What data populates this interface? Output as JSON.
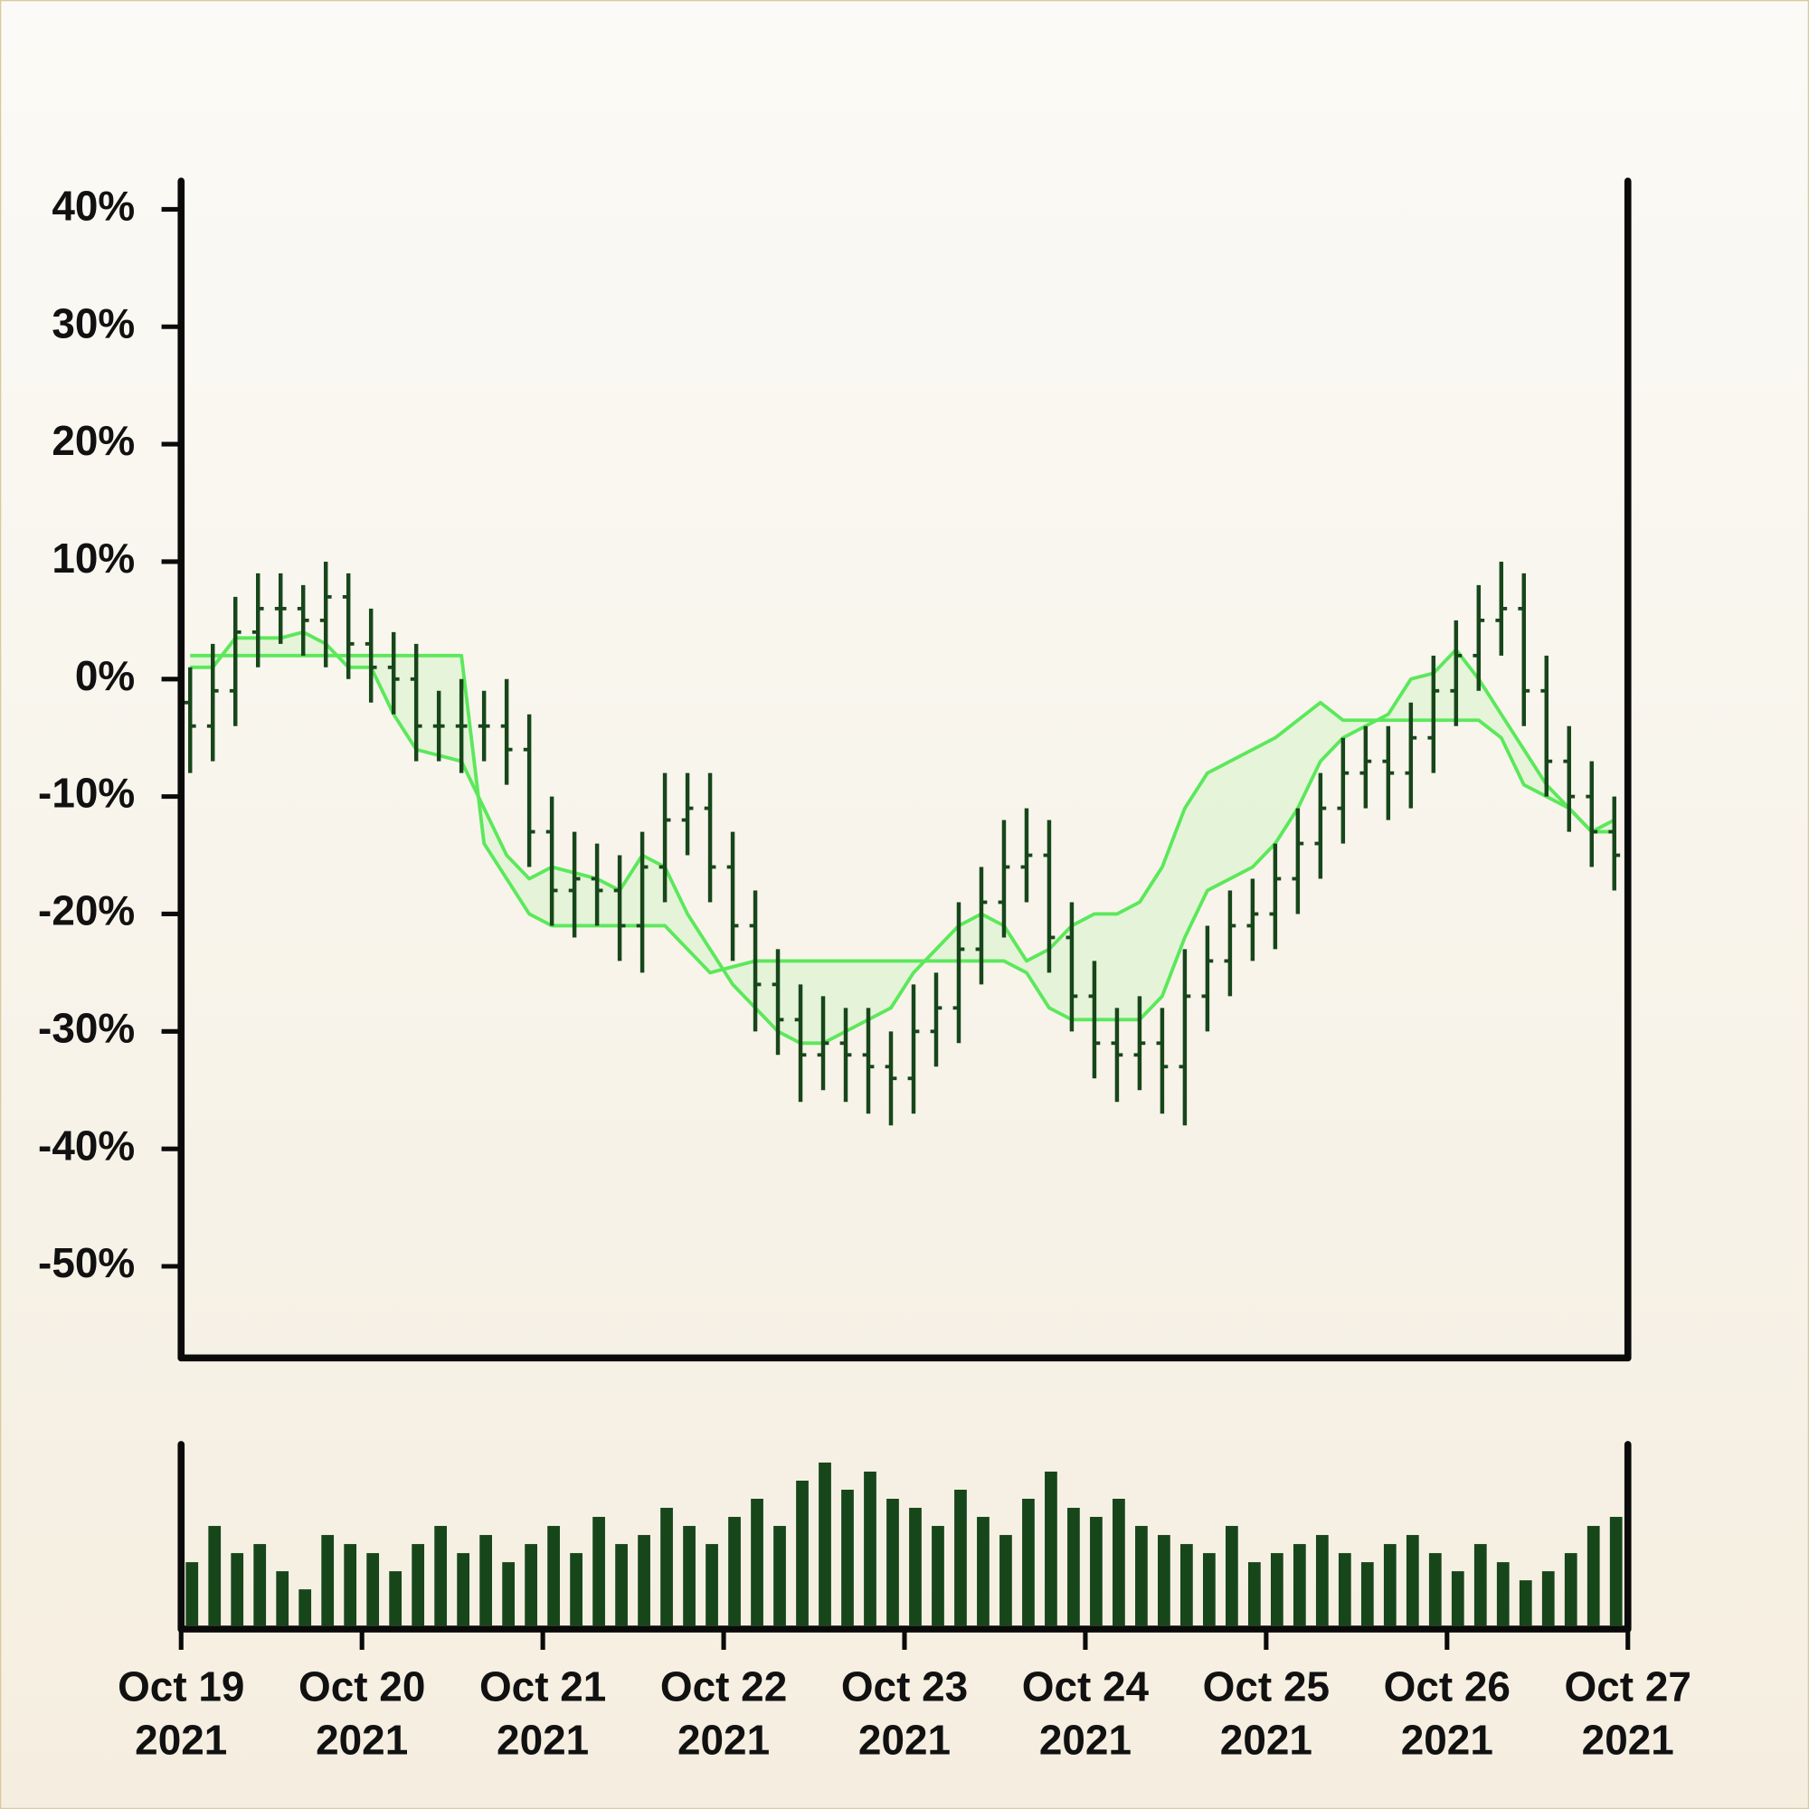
{
  "chart_data": [
    {
      "type": "ohlc",
      "color": "#17461a",
      "xlim": [
        "2021-10-19",
        "2021-10-27"
      ],
      "ylim": [
        -57.8,
        42.4
      ],
      "yticks": [
        {
          "value": 40,
          "label": "40%"
        },
        {
          "value": 30,
          "label": "30%"
        },
        {
          "value": 20,
          "label": "20%"
        },
        {
          "value": 10,
          "label": "10%"
        },
        {
          "value": 0,
          "label": "0%"
        },
        {
          "value": -10,
          "label": "-10%"
        },
        {
          "value": -20,
          "label": "-20%"
        },
        {
          "value": -30,
          "label": "-30%"
        },
        {
          "value": -40,
          "label": "-40%"
        },
        {
          "value": -50,
          "label": "-50%"
        }
      ],
      "open": [
        -2,
        -4,
        -1,
        4,
        6,
        6,
        5,
        7,
        3,
        1,
        0,
        -4,
        -4,
        -4,
        -4,
        -6,
        -13,
        -18,
        -17,
        -18,
        -21,
        -16,
        -12,
        -11,
        -16,
        -21,
        -26,
        -29,
        -32,
        -31,
        -32,
        -33,
        -34,
        -30,
        -28,
        -23,
        -19,
        -16,
        -15,
        -22,
        -27,
        -31,
        -32,
        -31,
        -33,
        -27,
        -24,
        -21,
        -20,
        -17,
        -14,
        -11,
        -8,
        -7,
        -8,
        -5,
        -1,
        2,
        5,
        6,
        -1,
        -7,
        -10,
        -13
      ],
      "high": [
        1,
        3,
        7,
        9,
        9,
        8,
        10,
        9,
        6,
        4,
        3,
        -1,
        0,
        -1,
        0,
        -3,
        -10,
        -13,
        -14,
        -15,
        -13,
        -8,
        -8,
        -8,
        -13,
        -18,
        -23,
        -26,
        -27,
        -28,
        -28,
        -30,
        -26,
        -25,
        -19,
        -16,
        -12,
        -11,
        -12,
        -19,
        -24,
        -28,
        -27,
        -28,
        -23,
        -21,
        -18,
        -17,
        -14,
        -11,
        -8,
        -5,
        -4,
        -4,
        -2,
        2,
        5,
        8,
        10,
        9,
        2,
        -4,
        -7,
        -10
      ],
      "low": [
        -8,
        -7,
        -4,
        1,
        3,
        2,
        1,
        0,
        -2,
        -3,
        -7,
        -7,
        -8,
        -7,
        -9,
        -16,
        -21,
        -22,
        -21,
        -24,
        -25,
        -19,
        -15,
        -19,
        -24,
        -30,
        -32,
        -36,
        -35,
        -36,
        -37,
        -38,
        -37,
        -33,
        -31,
        -26,
        -22,
        -19,
        -25,
        -30,
        -34,
        -36,
        -35,
        -37,
        -38,
        -30,
        -27,
        -24,
        -23,
        -20,
        -17,
        -14,
        -11,
        -12,
        -11,
        -8,
        -4,
        -1,
        2,
        -4,
        -10,
        -13,
        -16,
        -18
      ],
      "close": [
        -4,
        -1,
        4,
        6,
        6,
        5,
        7,
        3,
        1,
        0,
        -4,
        -4,
        -4,
        -4,
        -6,
        -13,
        -18,
        -17,
        -18,
        -21,
        -16,
        -12,
        -11,
        -16,
        -21,
        -26,
        -29,
        -32,
        -31,
        -32,
        -33,
        -34,
        -30,
        -28,
        -23,
        -19,
        -16,
        -15,
        -22,
        -27,
        -31,
        -32,
        -31,
        -33,
        -27,
        -24,
        -21,
        -20,
        -17,
        -14,
        -11,
        -8,
        -7,
        -8,
        -5,
        -1,
        2,
        5,
        6,
        -1,
        -7,
        -10,
        -13,
        -15
      ],
      "fill_color": "#dff3d2",
      "series": [
        {
          "color": "#5be85b",
          "values": [
            1,
            1,
            3.5,
            3.5,
            3.5,
            4,
            3,
            1,
            1,
            -3,
            -6,
            -6.5,
            -7,
            -11,
            -15,
            -17,
            -16,
            -16.5,
            -17,
            -18,
            -15,
            -16,
            -20,
            -23,
            -26,
            -28,
            -30,
            -31,
            -31,
            -30,
            -29,
            -28,
            -25,
            -23,
            -21,
            -20,
            -21,
            -24,
            -23,
            -21,
            -20,
            -20,
            -19,
            -16,
            -11,
            -8,
            -7,
            -6,
            -5,
            -3.5,
            -2,
            -3.5,
            -3.5,
            -3.5,
            -3.5,
            -3.5,
            -3.5,
            -3.5,
            -5,
            -9,
            -10,
            -11,
            -13,
            -12
          ]
        },
        {
          "color": "#5be85b",
          "values": [
            2,
            2,
            2,
            2,
            2,
            2,
            2,
            2,
            2,
            2,
            2,
            2,
            2,
            -14,
            -17,
            -20,
            -21,
            -21,
            -21,
            -21,
            -21,
            -21,
            -23,
            -25,
            -24.5,
            -24,
            -24,
            -24,
            -24,
            -24,
            -24,
            -24,
            -24,
            -24,
            -24,
            -24,
            -24,
            -25,
            -28,
            -29,
            -29,
            -29,
            -29,
            -27,
            -22,
            -18,
            -17,
            -16,
            -14,
            -11,
            -7,
            -5,
            -4,
            -3,
            0,
            0.5,
            2.5,
            0,
            -3,
            -6,
            -9,
            -11,
            -13,
            -13
          ]
        }
      ]
    },
    {
      "type": "bar",
      "color": "#17461a",
      "xlim": [
        "2021-10-19",
        "2021-10-27"
      ],
      "ylim": [
        0,
        100
      ],
      "xticks": [
        {
          "value": "2021-10-19",
          "label": [
            "Oct 19",
            "2021"
          ]
        },
        {
          "value": "2021-10-20",
          "label": [
            "Oct 20",
            "2021"
          ]
        },
        {
          "value": "2021-10-21",
          "label": [
            "Oct 21",
            "2021"
          ]
        },
        {
          "value": "2021-10-22",
          "label": [
            "Oct 22",
            "2021"
          ]
        },
        {
          "value": "2021-10-23",
          "label": [
            "Oct 23",
            "2021"
          ]
        },
        {
          "value": "2021-10-24",
          "label": [
            "Oct 24",
            "2021"
          ]
        },
        {
          "value": "2021-10-25",
          "label": [
            "Oct 25",
            "2021"
          ]
        },
        {
          "value": "2021-10-26",
          "label": [
            "Oct 26",
            "2021"
          ]
        },
        {
          "value": "2021-10-27",
          "label": [
            "Oct 27",
            "2021"
          ]
        }
      ],
      "values": [
        35,
        55,
        40,
        45,
        30,
        20,
        50,
        45,
        40,
        30,
        45,
        55,
        40,
        50,
        35,
        45,
        55,
        40,
        60,
        45,
        50,
        65,
        55,
        45,
        60,
        70,
        55,
        80,
        90,
        75,
        85,
        70,
        65,
        55,
        75,
        60,
        50,
        70,
        85,
        65,
        60,
        70,
        55,
        50,
        45,
        40,
        55,
        35,
        40,
        45,
        50,
        40,
        35,
        45,
        50,
        40,
        30,
        45,
        35,
        25,
        30,
        40,
        55,
        60
      ]
    }
  ]
}
